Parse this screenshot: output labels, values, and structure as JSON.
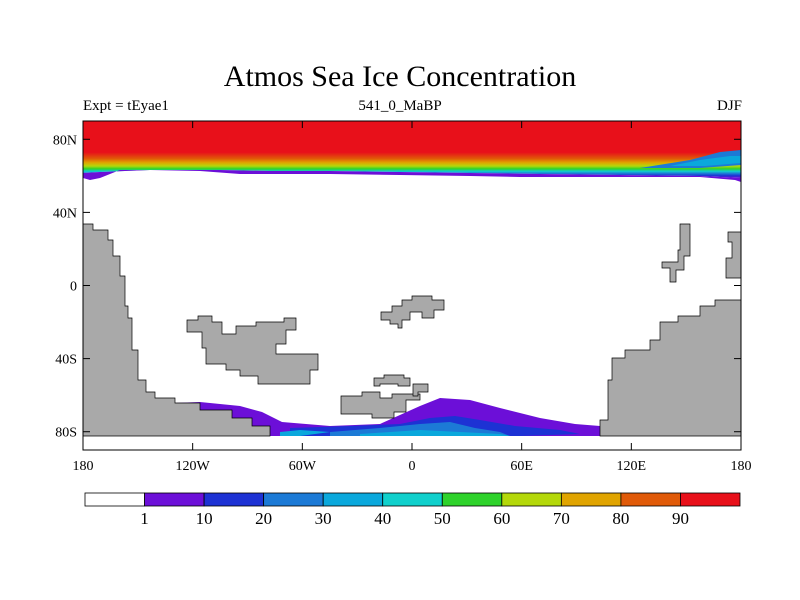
{
  "title": "Atmos Sea Ice Concentration",
  "subtitle_left": "Expt = tEyae1",
  "subtitle_center": "541_0_MaBP",
  "subtitle_right": "DJF",
  "map": {
    "lon_range": [
      -180,
      180
    ],
    "lat_range": [
      -90,
      90
    ],
    "x_ticks": [
      {
        "lon": -180,
        "label": "180"
      },
      {
        "lon": -120,
        "label": "120W"
      },
      {
        "lon": -60,
        "label": "60W"
      },
      {
        "lon": 0,
        "label": "0"
      },
      {
        "lon": 60,
        "label": "60E"
      },
      {
        "lon": 120,
        "label": "120E"
      },
      {
        "lon": 180,
        "label": "180"
      }
    ],
    "y_ticks": [
      {
        "lat": 80,
        "label": "80N"
      },
      {
        "lat": 40,
        "label": "40N"
      },
      {
        "lat": 0,
        "label": "0"
      },
      {
        "lat": -40,
        "label": "40S"
      },
      {
        "lat": -80,
        "label": "80S"
      }
    ],
    "land_color": "#a9a9a9"
  },
  "colorbar": {
    "colors": [
      "#ffffff",
      "#6c0fd8",
      "#1d32d4",
      "#1c7ad6",
      "#0aa8dc",
      "#10d0cc",
      "#2ed22b",
      "#b4d80a",
      "#e0a400",
      "#e05a08",
      "#e8101a"
    ],
    "labels": [
      "1",
      "10",
      "20",
      "30",
      "40",
      "50",
      "60",
      "70",
      "80",
      "90"
    ]
  }
}
